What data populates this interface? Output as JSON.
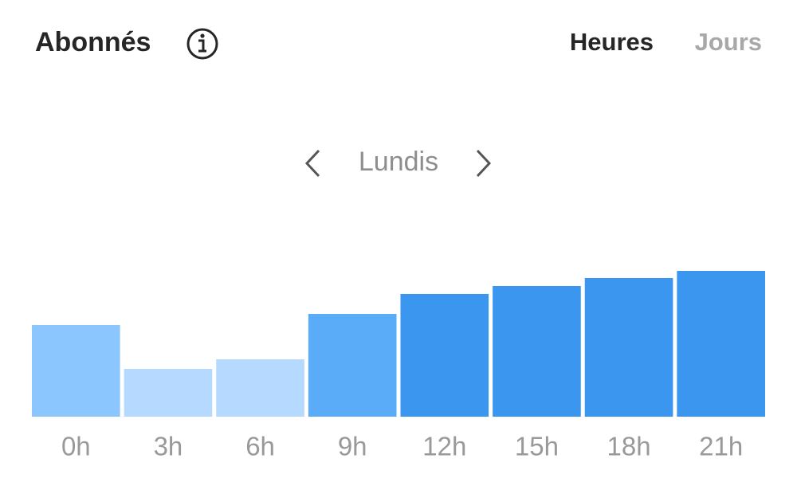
{
  "chart_data": {
    "type": "bar",
    "title": "Abonnés",
    "tabs": [
      "Heures",
      "Jours"
    ],
    "subtitle": "Lundis",
    "categories": [
      "0h",
      "3h",
      "6h",
      "9h",
      "12h",
      "15h",
      "18h",
      "21h"
    ],
    "values": [
      115,
      60,
      72,
      129,
      154,
      164,
      174,
      183
    ],
    "colors": [
      "#8cc6ff",
      "#b6daff",
      "#b6daff",
      "#5aabf8",
      "#3a96ef",
      "#3a96ef",
      "#3a96ef",
      "#3a96ef"
    ],
    "ylim": [
      0,
      200
    ]
  }
}
